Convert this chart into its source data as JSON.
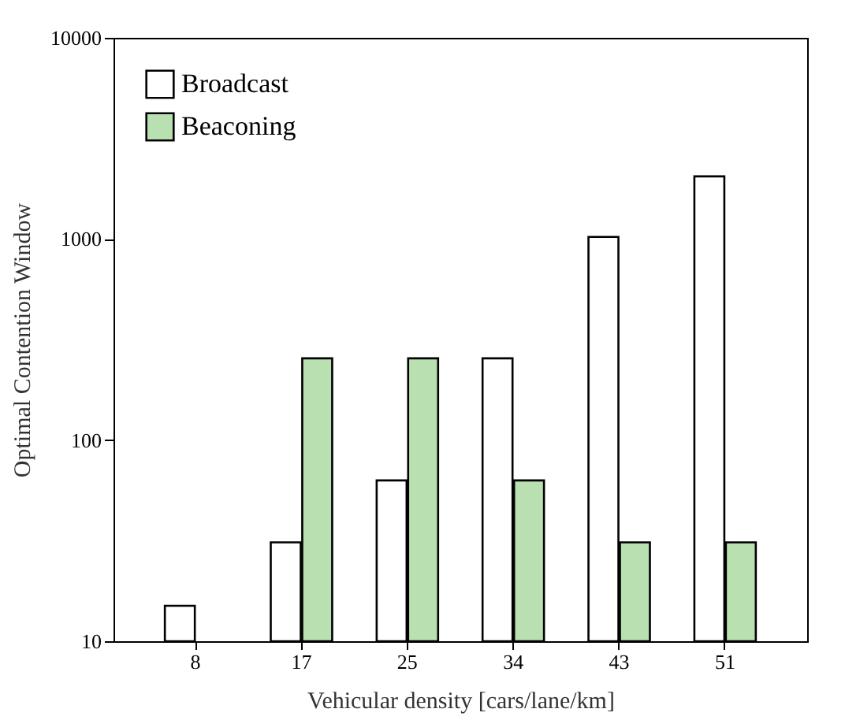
{
  "chart_data": {
    "type": "bar",
    "xlabel": "Vehicular density [cars/lane/km]",
    "ylabel": "Optimal Contention Window",
    "categories": [
      "8",
      "17",
      "25",
      "34",
      "43",
      "51"
    ],
    "series": [
      {
        "name": "Broadcast",
        "color": "#ffffff",
        "values": [
          15,
          31,
          63,
          255,
          1023,
          2047
        ]
      },
      {
        "name": "Beaconing",
        "color": "#b8e0b0",
        "values": [
          null,
          255,
          255,
          63,
          31,
          31
        ]
      }
    ],
    "log": "y",
    "ylim": [
      10,
      10000
    ],
    "yticks": [
      10,
      100,
      1000,
      10000
    ],
    "grid": false,
    "legend": "top left"
  }
}
